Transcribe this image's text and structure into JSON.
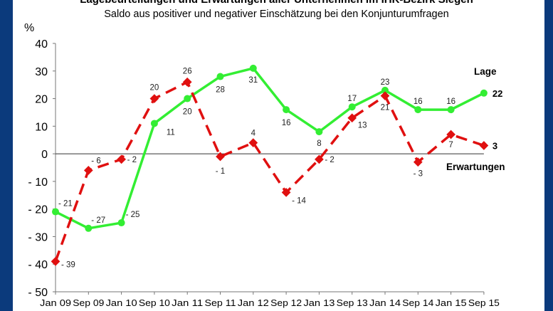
{
  "chart_data": {
    "type": "line",
    "title": "Lagebeurteilungen und Erwartungen aller Unternehmen im IHK-Bezirk Siegen",
    "subtitle": "Saldo aus positiver und negativer Einschätzung bei den Konjunturumfragen",
    "ylabel": "%",
    "xlabel": "",
    "ylim": [
      -50,
      40
    ],
    "yticks": [
      40,
      30,
      20,
      10,
      0,
      -10,
      -20,
      -30,
      -40,
      -50
    ],
    "ytick_labels": [
      "40",
      "30",
      "20",
      "10",
      "0",
      "- 10",
      "- 20",
      "- 30",
      "- 40",
      "- 50"
    ],
    "categories": [
      "Jan 09",
      "Sep 09",
      "Jan 10",
      "Sep 10",
      "Jan 11",
      "Sep 11",
      "Jan 12",
      "Sep 12",
      "Jan 13",
      "Sep 13",
      "Jan 14",
      "Sep 14",
      "Jan 15",
      "Sep 15"
    ],
    "grid": false,
    "series": [
      {
        "name": "Lage",
        "color": "#33ee33",
        "style": "solid",
        "marker": "circle",
        "values": [
          -21,
          -27,
          -25,
          11,
          20,
          28,
          31,
          16,
          8,
          17,
          23,
          16,
          16,
          22
        ]
      },
      {
        "name": "Erwartungen",
        "color": "#e01010",
        "style": "dashed",
        "marker": "diamond",
        "values": [
          -39,
          -6,
          -2,
          20,
          26,
          -1,
          4,
          -14,
          -2,
          13,
          21,
          -3,
          7,
          3
        ]
      }
    ]
  }
}
